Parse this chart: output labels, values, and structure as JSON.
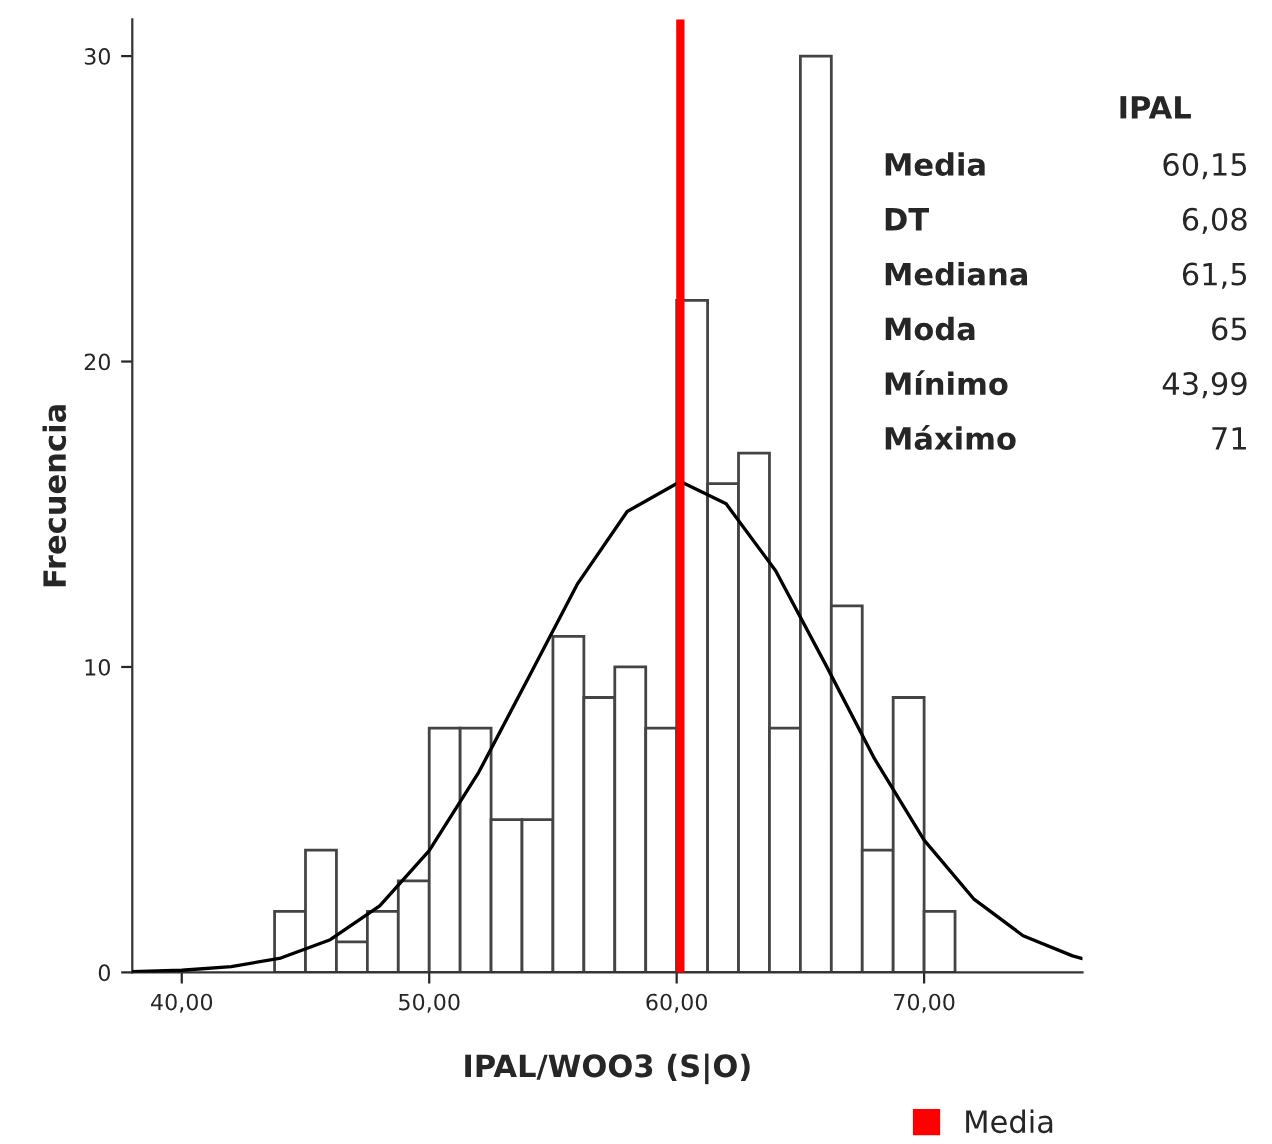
{
  "chart_data": {
    "type": "histogram",
    "xlabel": "IPAL/WOO3 (S|O)",
    "ylabel": "Frecuencia",
    "bins": [
      43.75,
      45,
      46.25,
      47.5,
      48.75,
      50,
      51.25,
      52.5,
      53.75,
      55,
      56.25,
      57.5,
      58.75,
      60,
      61.25,
      62.5,
      63.75,
      65,
      66.25,
      67.5,
      68.75,
      70,
      71.25
    ],
    "values": [
      2,
      4,
      1,
      2,
      3,
      8,
      8,
      5,
      5,
      11,
      9,
      10,
      8,
      22,
      16,
      17,
      8,
      30,
      12,
      4,
      9,
      2
    ],
    "color": "#ffffff",
    "series": [
      {
        "type": "line",
        "color": "#000000",
        "x": [
          38,
          40,
          42,
          44,
          46,
          48,
          50,
          52,
          54,
          56,
          58,
          60.15,
          62,
          64,
          66,
          68,
          70,
          72,
          74,
          76,
          76.4
        ],
        "values": [
          0.02,
          0.07,
          0.19,
          0.47,
          1.07,
          2.18,
          3.99,
          6.55,
          9.63,
          12.73,
          15.09,
          16.07,
          15.34,
          13.15,
          10.11,
          6.99,
          4.33,
          2.41,
          1.2,
          0.54,
          0.45
        ]
      }
    ],
    "ref_lines": [
      {
        "axis": "x",
        "value": 60.15,
        "label": "Media",
        "color": "#ff0000"
      }
    ],
    "annotations": [
      "IPAL",
      "Media",
      "60,15",
      "DT",
      "6,08",
      "Mediana",
      "61,5",
      "Moda",
      "65",
      "Mínimo",
      "43,99",
      "Máximo",
      "71"
    ],
    "xlim": [
      38,
      76.4
    ],
    "ylim": [
      0,
      31.2
    ],
    "xticks": [
      {
        "value": 40,
        "label": "40,00"
      },
      {
        "value": 50,
        "label": "50,00"
      },
      {
        "value": 60,
        "label": "60,00"
      },
      {
        "value": 70,
        "label": "70,00"
      }
    ],
    "yticks": [
      0,
      10,
      20,
      30
    ],
    "grid": false,
    "legend": "bottom right"
  }
}
